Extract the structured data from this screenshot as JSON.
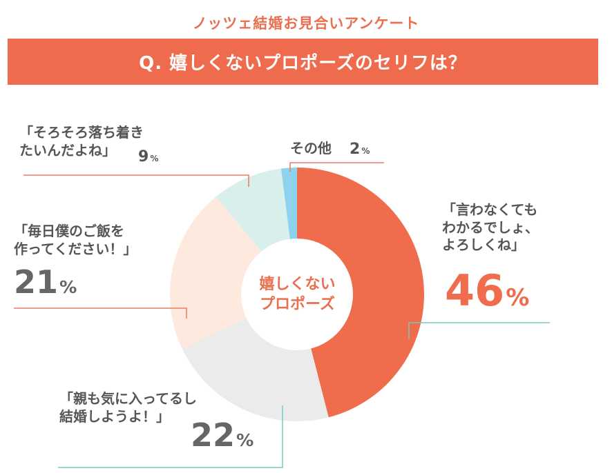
{
  "header": {
    "survey_title": "ノッツェ結婚お見合いアンケート",
    "question": "Q. 嬉しくないプロポーズのセリフは？"
  },
  "chart_data": {
    "type": "pie",
    "donut": true,
    "center_label": "嬉しくない\nプロポーズ",
    "slices": [
      {
        "label": "「言わなくても\nわかるでしょ、\nよろしくね」",
        "value": 46,
        "percent_text": "46",
        "color": "#ef6c4c"
      },
      {
        "label": "「親も気に入ってるし\n結婚しようよ！」",
        "value": 22,
        "percent_text": "22",
        "color": "#ebebeb"
      },
      {
        "label": "「毎日僕のご飯を\n作ってください！」",
        "value": 21,
        "percent_text": "21",
        "color": "#fde9de"
      },
      {
        "label": "「そろそろ落ち着き\nたいんだよね」",
        "value": 9,
        "percent_text": "9",
        "color": "#d9efec"
      },
      {
        "label": "その他",
        "value": 2,
        "percent_text": "2",
        "color": "#8fd2ee"
      }
    ],
    "percent_unit": "%"
  }
}
